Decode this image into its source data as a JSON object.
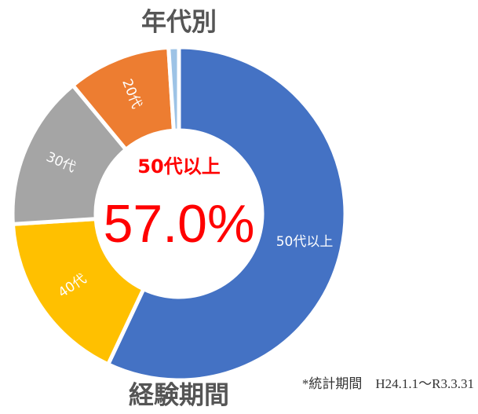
{
  "chart_data": {
    "type": "donut",
    "title": "年代別",
    "subtitle": "経験期間",
    "annotation": "*統計期間　H24.1.1～R3.3.31",
    "categories": [
      "50代以上",
      "40代",
      "30代",
      "20代",
      null
    ],
    "values": [
      57,
      17,
      15,
      10,
      1
    ],
    "value_labels": [
      "57.0%",
      null,
      null,
      null,
      null
    ],
    "colors": [
      "#4472c4",
      "#ffc000",
      "#a5a5a5",
      "#ed7d31",
      "#9dc3e6"
    ]
  }
}
